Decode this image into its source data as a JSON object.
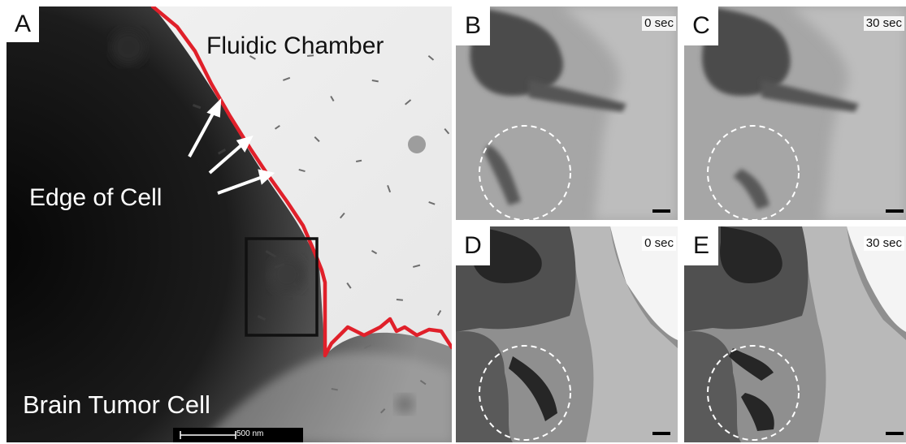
{
  "figure": {
    "panels": {
      "A": {
        "letter": "A",
        "fluidic_chamber_label": "Fluidic Chamber",
        "edge_label": "Edge of Cell",
        "cell_label": "Brain Tumor Cell",
        "scale_bar_label": "500 nm"
      },
      "B": {
        "letter": "B",
        "time": "0 sec"
      },
      "C": {
        "letter": "C",
        "time": "30 sec"
      },
      "D": {
        "letter": "D",
        "time": "0 sec"
      },
      "E": {
        "letter": "E",
        "time": "30 sec"
      }
    },
    "colors": {
      "cell_edge_line": "#e0202a",
      "roi_box": "#111111",
      "circle_outline": "#ffffff"
    }
  }
}
